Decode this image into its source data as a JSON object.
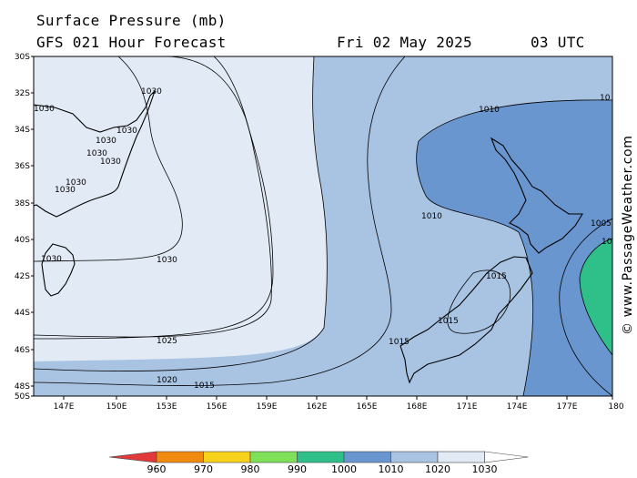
{
  "header": {
    "title": "Surface Pressure (mb)",
    "forecast": "GFS 021 Hour Forecast",
    "date": "Fri 02 May 2025",
    "time": "03 UTC"
  },
  "credit": "© www.PassageWeather.com",
  "lat_ticks": [
    "30S",
    "32S",
    "34S",
    "36S",
    "38S",
    "40S",
    "42S",
    "44S",
    "46S",
    "48S",
    "50S"
  ],
  "lon_ticks": [
    "147E",
    "150E",
    "153E",
    "156E",
    "159E",
    "162E",
    "165E",
    "168E",
    "171E",
    "174E",
    "177E",
    "180"
  ],
  "isobar_labels": {
    "l1030a": "1030",
    "l1030b": "1030",
    "l1030c": "1030",
    "l1030d": "1030",
    "l1030e": "1030",
    "l1030f": "1030",
    "l1030g": "1030",
    "l1030h": "1030",
    "l1030i": "1030",
    "l1030j": "1030",
    "l1025": "1025",
    "l1020": "1020",
    "l1015a": "1015",
    "l1010a": "1010",
    "l1010b": "1010",
    "l1010c": "10",
    "l1015b": "1015",
    "l1015c": "1015",
    "l1015d": "1015",
    "l1005": "1005",
    "l1000": "10"
  },
  "legend": {
    "labels": [
      "960",
      "970",
      "980",
      "990",
      "1000",
      "1010",
      "1020",
      "1030"
    ],
    "colors": [
      "#e23a3a",
      "#f08a10",
      "#f7d21a",
      "#7fe05a",
      "#2fc08a",
      "#6a96d0",
      "#a9c3e2",
      "#e2eaf5"
    ]
  }
}
